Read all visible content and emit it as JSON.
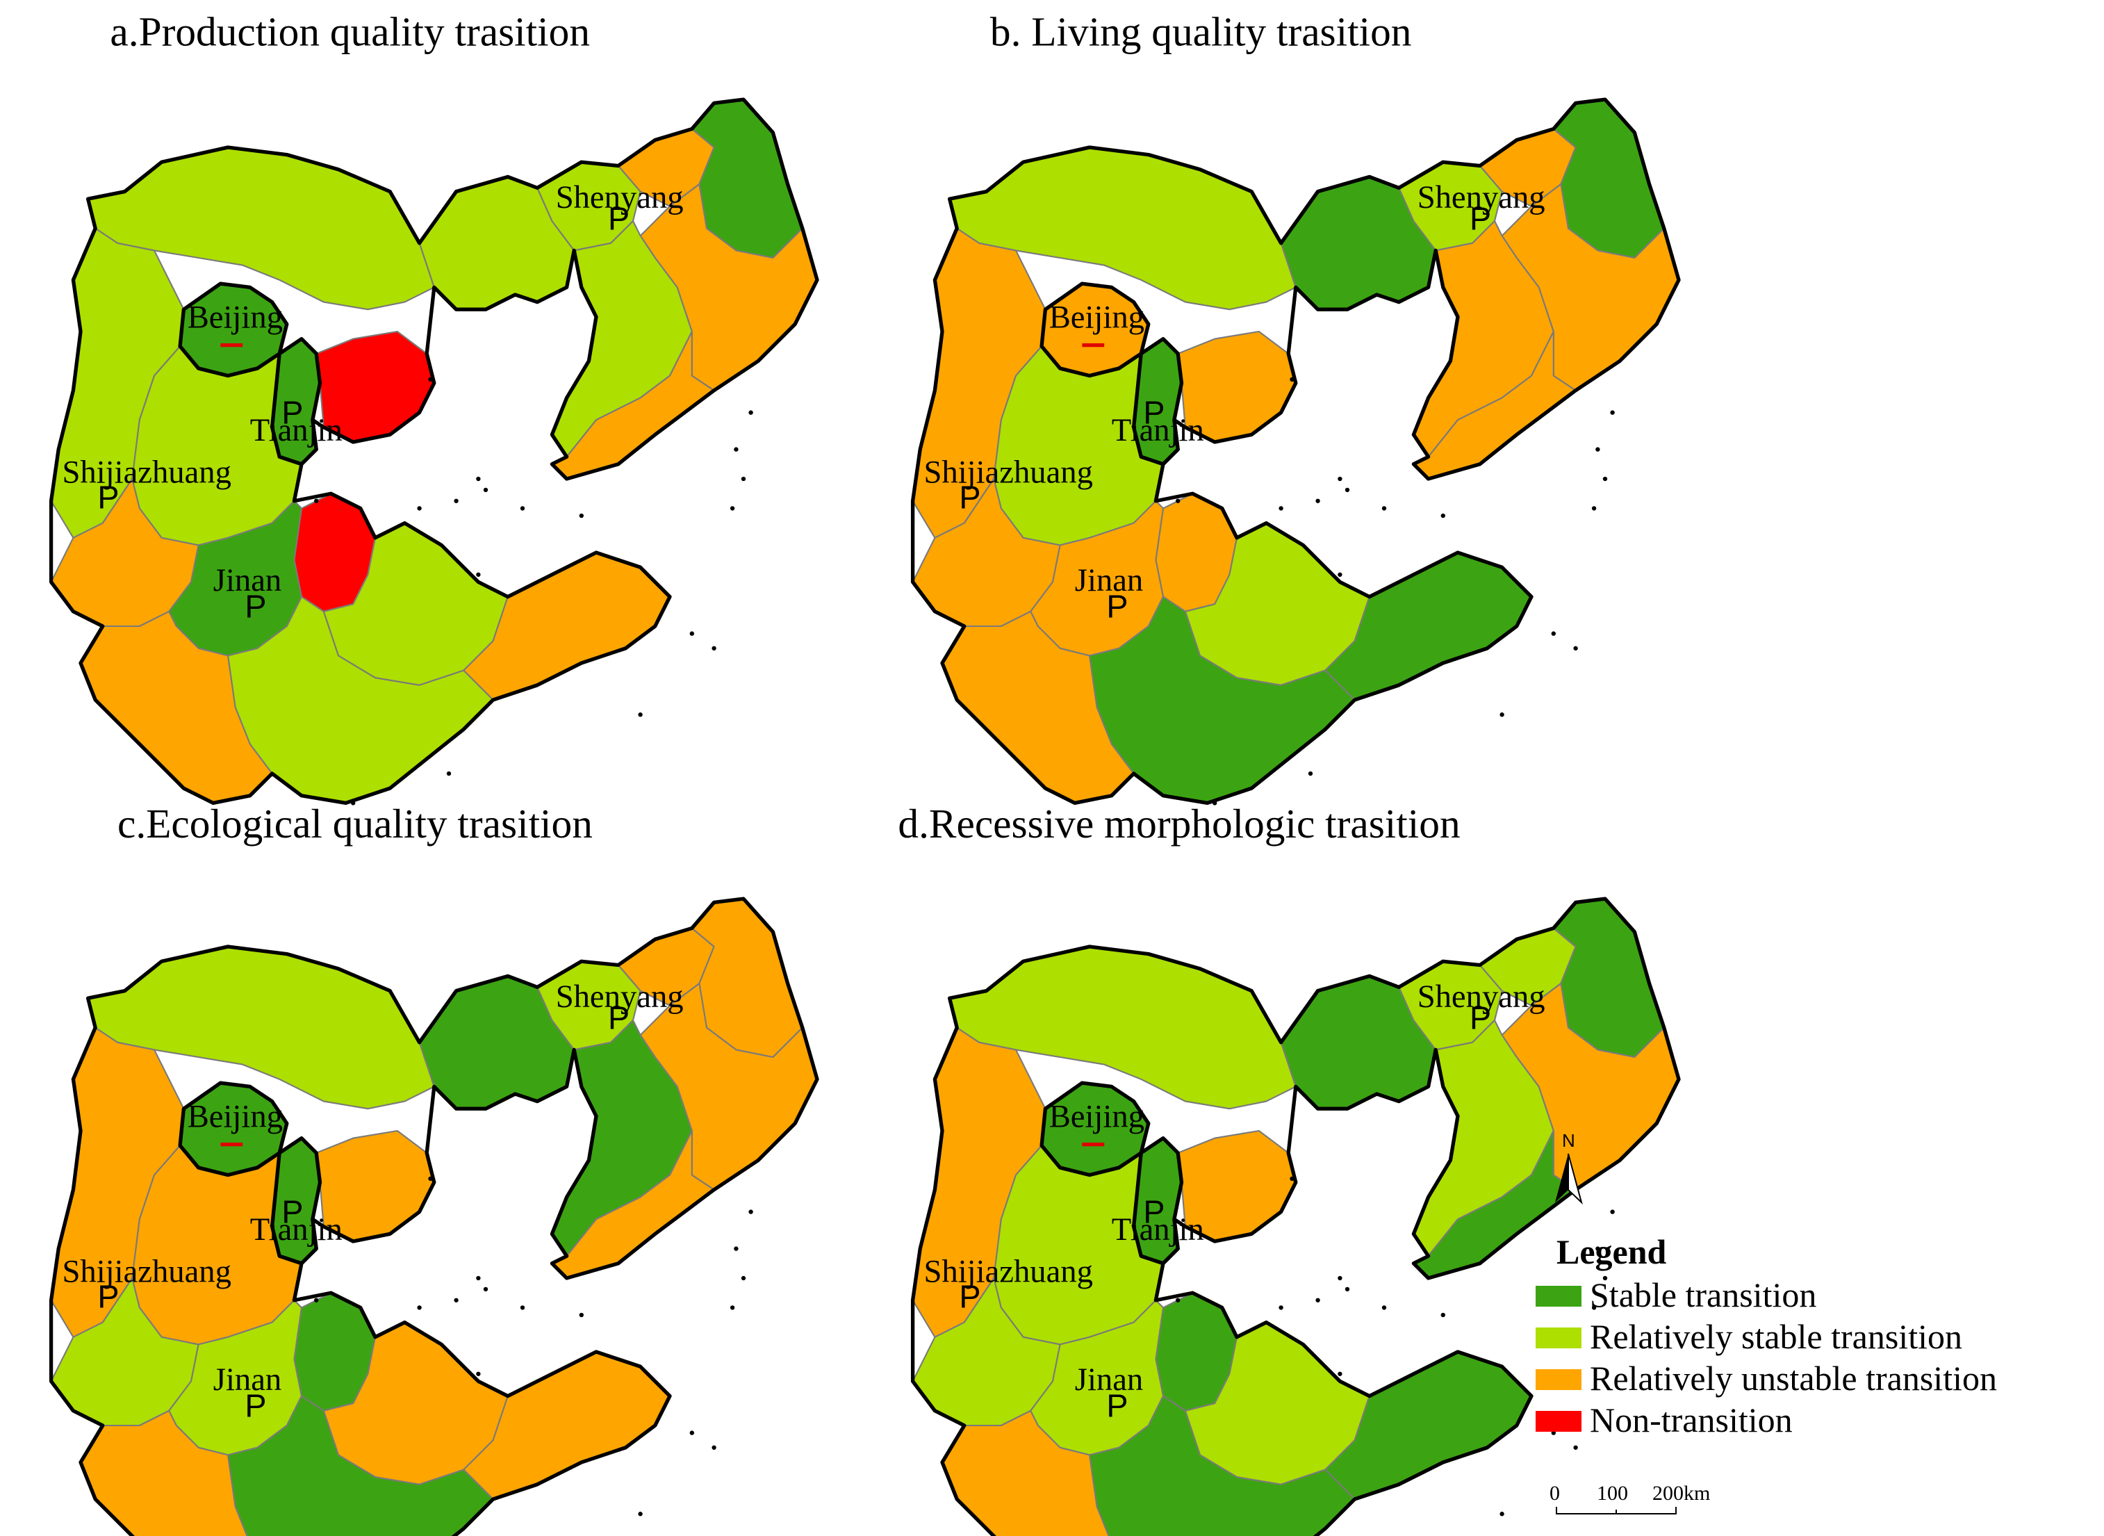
{
  "colors": {
    "stable": "#3ca412",
    "relatively_stable": "#addf00",
    "relatively_unstable": "#ffa500",
    "non_transition": "#ff0000",
    "capital_bar": "#e00000"
  },
  "panels": [
    {
      "title": "a.Production quality trasition",
      "cities": {
        "beijing": "Beijing",
        "tianjin": "Tianjin",
        "shijiazhuang": "Shijiazhuang",
        "jinan": "Jinan",
        "shenyang": "Shenyang"
      },
      "classes": {
        "liaoning_w": "relatively_stable",
        "liaoning_nw": "relatively_stable",
        "liaoning_n": "relatively_unstable",
        "liaoning_ne": "stable",
        "liaoning_e": "relatively_unstable",
        "liaoning_s": "relatively_stable",
        "liaoning_sw": "relatively_unstable",
        "hebei_n": "relatively_stable",
        "hebei_ne": "non_transition",
        "hebei_w": "relatively_stable",
        "hebei_c": "relatively_stable",
        "hebei_s": "relatively_unstable",
        "beijing": "stable",
        "tianjin": "stable",
        "shandong_nw": "non_transition",
        "shandong_w": "stable",
        "shandong_c": "relatively_stable",
        "shandong_e": "relatively_unstable",
        "shandong_s": "relatively_stable",
        "shandong_sw": "relatively_unstable"
      }
    },
    {
      "title": "b. Living quality trasition",
      "cities": {
        "beijing": "Beijing",
        "tianjin": "Tianjin",
        "shijiazhuang": "Shijiazhuang",
        "jinan": "Jinan",
        "shenyang": "Shenyang"
      },
      "classes": {
        "liaoning_w": "stable",
        "liaoning_nw": "relatively_stable",
        "liaoning_n": "relatively_unstable",
        "liaoning_ne": "stable",
        "liaoning_e": "relatively_unstable",
        "liaoning_s": "relatively_unstable",
        "liaoning_sw": "relatively_unstable",
        "hebei_n": "relatively_stable",
        "hebei_ne": "relatively_unstable",
        "hebei_w": "relatively_unstable",
        "hebei_c": "relatively_stable",
        "hebei_s": "relatively_unstable",
        "beijing": "relatively_unstable",
        "tianjin": "stable",
        "shandong_nw": "relatively_unstable",
        "shandong_w": "relatively_unstable",
        "shandong_c": "relatively_stable",
        "shandong_e": "stable",
        "shandong_s": "stable",
        "shandong_sw": "relatively_unstable"
      }
    },
    {
      "title": "c.Ecological quality trasition",
      "cities": {
        "beijing": "Beijing",
        "tianjin": "Tianjin",
        "shijiazhuang": "Shijiazhuang",
        "jinan": "Jinan",
        "shenyang": "Shenyang"
      },
      "classes": {
        "liaoning_w": "stable",
        "liaoning_nw": "relatively_stable",
        "liaoning_n": "relatively_unstable",
        "liaoning_ne": "relatively_unstable",
        "liaoning_e": "relatively_unstable",
        "liaoning_s": "stable",
        "liaoning_sw": "relatively_unstable",
        "hebei_n": "relatively_stable",
        "hebei_ne": "relatively_unstable",
        "hebei_w": "relatively_unstable",
        "hebei_c": "relatively_unstable",
        "hebei_s": "relatively_stable",
        "beijing": "stable",
        "tianjin": "stable",
        "shandong_nw": "stable",
        "shandong_w": "relatively_stable",
        "shandong_c": "relatively_unstable",
        "shandong_e": "relatively_unstable",
        "shandong_s": "stable",
        "shandong_sw": "relatively_unstable"
      }
    },
    {
      "title": "d.Recessive morphologic trasition",
      "cities": {
        "beijing": "Beijing",
        "tianjin": "Tianjin",
        "shijiazhuang": "Shijiazhuang",
        "jinan": "Jinan",
        "shenyang": "Shenyang"
      },
      "classes": {
        "liaoning_w": "stable",
        "liaoning_nw": "relatively_stable",
        "liaoning_n": "relatively_stable",
        "liaoning_ne": "stable",
        "liaoning_e": "relatively_unstable",
        "liaoning_s": "relatively_stable",
        "liaoning_sw": "stable",
        "hebei_n": "relatively_stable",
        "hebei_ne": "relatively_unstable",
        "hebei_w": "relatively_unstable",
        "hebei_c": "relatively_stable",
        "hebei_s": "relatively_stable",
        "beijing": "stable",
        "tianjin": "stable",
        "shandong_nw": "stable",
        "shandong_w": "relatively_stable",
        "shandong_c": "relatively_stable",
        "shandong_e": "stable",
        "shandong_s": "stable",
        "shandong_sw": "relatively_unstable"
      }
    }
  ],
  "legend": {
    "title": "Legend",
    "items": [
      {
        "key": "stable",
        "label": "Stable transition"
      },
      {
        "key": "relatively_stable",
        "label": "Relatively stable transition"
      },
      {
        "key": "relatively_unstable",
        "label": "Relatively unstable transition"
      },
      {
        "key": "non_transition",
        "label": "Non-transition"
      }
    ]
  },
  "north_arrow": {
    "label": "N"
  },
  "scale_bar": {
    "ticks": [
      "0",
      "100",
      "200km"
    ]
  },
  "capital_marker": "P"
}
